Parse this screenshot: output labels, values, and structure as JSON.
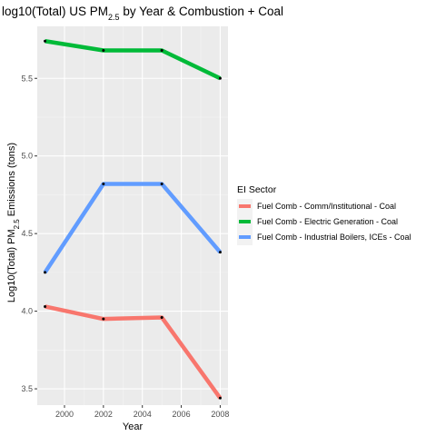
{
  "chart_data": {
    "type": "line",
    "title": "log10(Total) US PM",
    "title_sub": "2.5",
    "title_rest": " by Year & Combustion + Coal",
    "xlabel": "Year",
    "ylabel_main": "Log10(Total) PM",
    "ylabel_sub": "2.5",
    "ylabel_rest": " Emissions (tons)",
    "x_ticks": [
      2000,
      2002,
      2004,
      2006,
      2008
    ],
    "y_ticks": [
      3.5,
      4.0,
      4.5,
      5.0,
      5.5
    ],
    "xlim": [
      1998.6,
      2008.4
    ],
    "ylim": [
      3.395,
      5.835
    ],
    "grid": true,
    "background": "#ebebeb",
    "legend_title": "EI Sector",
    "legend_position": "right",
    "x": [
      1999,
      2002,
      2005,
      2008
    ],
    "series": [
      {
        "name": "Fuel Comb - Comm/Institutional - Coal",
        "color": "#f8766d",
        "values": [
          4.03,
          3.95,
          3.96,
          3.44
        ]
      },
      {
        "name": "Fuel Comb - Electric Generation - Coal",
        "color": "#00ba38",
        "values": [
          5.74,
          5.68,
          5.68,
          5.5
        ]
      },
      {
        "name": "Fuel Comb - Industrial Boilers, ICEs - Coal",
        "color": "#619cff",
        "values": [
          4.25,
          4.82,
          4.82,
          4.38
        ]
      }
    ]
  }
}
